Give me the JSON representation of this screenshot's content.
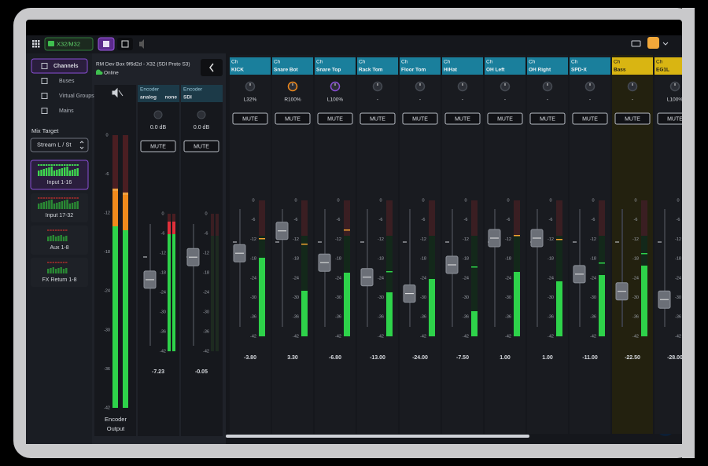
{
  "toolbar": {
    "device": "X32/M32"
  },
  "sidebar": {
    "nav": [
      "Channels",
      "Buses",
      "Virtual Groups",
      "Mains"
    ],
    "mix_target": {
      "label": "Mix Target",
      "value": "Stream L / St"
    },
    "banks": [
      "Input 1-16",
      "Input 17-32",
      "Aux 1-8",
      "FX Return 1-8"
    ]
  },
  "device": {
    "name": "RM Dev Box 9f6d2d - X32 (SDI Proto S3)",
    "status": "Online"
  },
  "meter_scale": [
    "0",
    "-6",
    "-12",
    "-18",
    "-24",
    "-30",
    "-36",
    "-42"
  ],
  "encoder_output": {
    "label": [
      "Encoder",
      "Output"
    ]
  },
  "encoders": [
    {
      "name": "Encoder",
      "source": "analog",
      "routing": "none",
      "gain": "0.0 dB",
      "mute": "MUTE",
      "level": "-7.23"
    },
    {
      "name": "Encoder",
      "source": "SDI",
      "gain": "0.0 dB",
      "mute": "MUTE",
      "level": "-0.05"
    }
  ],
  "channels": [
    {
      "kind": "Ch",
      "name": "KICK",
      "pan": "L32%",
      "mute": "MUTE",
      "level": "-3.80",
      "color": "#1a7f9c"
    },
    {
      "kind": "Ch",
      "name": "Snare Bot",
      "pan": "R100%",
      "mute": "MUTE",
      "level": "3.30",
      "color": "#1a7f9c"
    },
    {
      "kind": "Ch",
      "name": "Snare Top",
      "pan": "L100%",
      "mute": "MUTE",
      "level": "-6.80",
      "color": "#1a7f9c"
    },
    {
      "kind": "Ch",
      "name": "Rack Tom",
      "pan": "-",
      "mute": "MUTE",
      "level": "-13.00",
      "color": "#1a7f9c"
    },
    {
      "kind": "Ch",
      "name": "Floor Tom",
      "pan": "-",
      "mute": "MUTE",
      "level": "-24.00",
      "color": "#1a7f9c"
    },
    {
      "kind": "Ch",
      "name": "HiHat",
      "pan": "-",
      "mute": "MUTE",
      "level": "-7.50",
      "color": "#1a7f9c"
    },
    {
      "kind": "Ch",
      "name": "OH Left",
      "pan": "-",
      "mute": "MUTE",
      "level": "1.00",
      "color": "#1a7f9c"
    },
    {
      "kind": "Ch",
      "name": "OH Right",
      "pan": "-",
      "mute": "MUTE",
      "level": "1.00",
      "color": "#1a7f9c"
    },
    {
      "kind": "Ch",
      "name": "SPD-X",
      "pan": "-",
      "mute": "MUTE",
      "level": "-11.00",
      "color": "#1a7f9c"
    },
    {
      "kind": "Ch",
      "name": "Bass",
      "pan": "-",
      "mute": "MUTE",
      "level": "-22.50",
      "color": "#d9b512"
    },
    {
      "kind": "Ch",
      "name": "EG1L",
      "pan": "L100%",
      "mute": "MUTE",
      "level": "-28.00",
      "color": "#d9b512"
    }
  ]
}
